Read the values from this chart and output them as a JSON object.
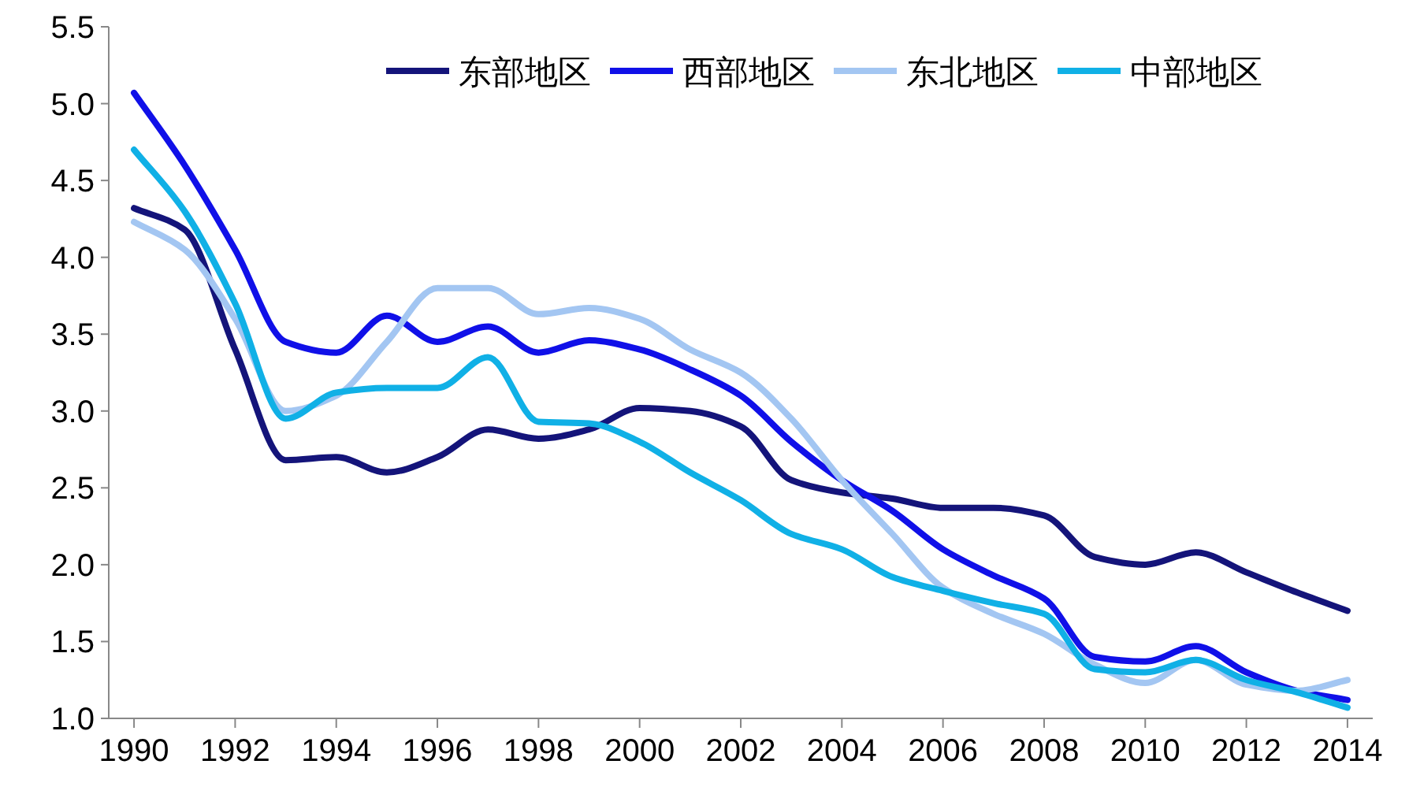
{
  "chart_data": {
    "type": "line",
    "x": [
      1990,
      1991,
      1992,
      1993,
      1994,
      1995,
      1996,
      1997,
      1998,
      1999,
      2000,
      2001,
      2002,
      2003,
      2004,
      2005,
      2006,
      2007,
      2008,
      2009,
      2010,
      2011,
      2012,
      2013,
      2014
    ],
    "series": [
      {
        "name": "东部地区",
        "color": "#14147a",
        "values": [
          4.32,
          4.18,
          3.4,
          2.68,
          2.7,
          2.6,
          2.7,
          2.88,
          2.82,
          2.88,
          3.02,
          3.0,
          2.9,
          2.55,
          2.47,
          2.43,
          2.37,
          2.37,
          2.32,
          2.05,
          2.0,
          2.08,
          1.95,
          1.82,
          1.7
        ]
      },
      {
        "name": "西部地区",
        "color": "#1010e8",
        "values": [
          5.07,
          4.6,
          4.05,
          3.45,
          3.38,
          3.62,
          3.45,
          3.55,
          3.38,
          3.46,
          3.4,
          3.27,
          3.1,
          2.8,
          2.55,
          2.35,
          2.1,
          1.93,
          1.78,
          1.4,
          1.37,
          1.47,
          1.3,
          1.18,
          1.12
        ]
      },
      {
        "name": "东北地区",
        "color": "#a3c6f2",
        "values": [
          4.23,
          4.05,
          3.6,
          3.0,
          3.1,
          3.45,
          3.8,
          3.8,
          3.63,
          3.67,
          3.6,
          3.4,
          3.25,
          2.95,
          2.55,
          2.2,
          1.85,
          1.68,
          1.55,
          1.35,
          1.23,
          1.38,
          1.22,
          1.18,
          1.25
        ]
      },
      {
        "name": "中部地区",
        "color": "#10b0e6",
        "values": [
          4.7,
          4.3,
          3.7,
          2.95,
          3.12,
          3.15,
          3.15,
          3.35,
          2.93,
          2.92,
          2.8,
          2.6,
          2.42,
          2.2,
          2.1,
          1.92,
          1.83,
          1.75,
          1.68,
          1.32,
          1.3,
          1.38,
          1.25,
          1.17,
          1.07
        ]
      }
    ],
    "xlim": [
      1989.5,
      2014.5
    ],
    "xticks": [
      1990,
      1992,
      1994,
      1996,
      1998,
      2000,
      2002,
      2004,
      2006,
      2008,
      2010,
      2012,
      2014
    ],
    "ylim": [
      1.0,
      5.5
    ],
    "yticks": [
      {
        "value": 1.0,
        "label": "1.0"
      },
      {
        "value": 1.5,
        "label": "1.5"
      },
      {
        "value": 2.0,
        "label": "2.0"
      },
      {
        "value": 2.5,
        "label": "2.5"
      },
      {
        "value": 3.0,
        "label": "3.0"
      },
      {
        "value": 3.5,
        "label": "3.5"
      },
      {
        "value": 4.0,
        "label": "4.0"
      },
      {
        "value": 4.5,
        "label": "4.5"
      },
      {
        "value": 5.0,
        "label": "5.0"
      },
      {
        "value": 5.5,
        "label": "5.5"
      }
    ],
    "grid": false,
    "legend": "top right",
    "marker": "none",
    "line_style": "solid"
  }
}
